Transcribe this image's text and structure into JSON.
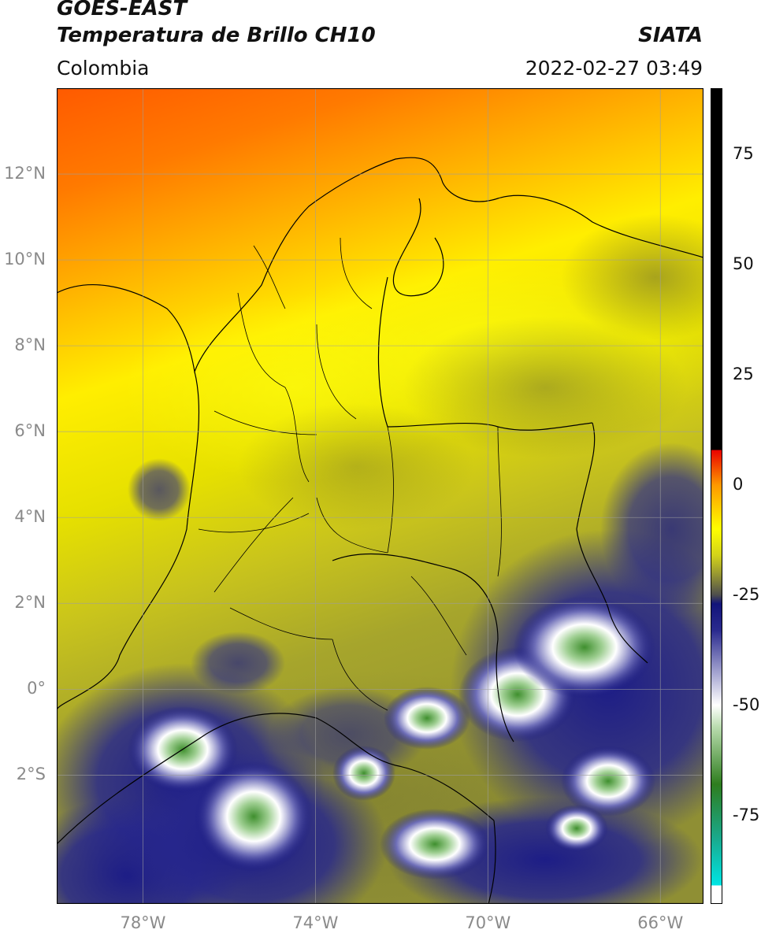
{
  "header": {
    "satellite": "GOES-EAST",
    "product": "Temperatura de Brillo CH10",
    "organization": "SIATA",
    "region": "Colombia",
    "datetime": "2022-02-27 03:49"
  },
  "map": {
    "lon_range": [
      -80,
      -65
    ],
    "lat_range": [
      -5,
      14
    ],
    "lat_ticks": [
      {
        "value": 12,
        "label": "12°N"
      },
      {
        "value": 10,
        "label": "10°N"
      },
      {
        "value": 8,
        "label": "8°N"
      },
      {
        "value": 6,
        "label": "6°N"
      },
      {
        "value": 4,
        "label": "4°N"
      },
      {
        "value": 2,
        "label": "2°N"
      },
      {
        "value": 0,
        "label": "0°"
      },
      {
        "value": -2,
        "label": "2°S"
      }
    ],
    "lon_ticks": [
      {
        "value": -78,
        "label": "78°W"
      },
      {
        "value": -74,
        "label": "74°W"
      },
      {
        "value": -70,
        "label": "70°W"
      },
      {
        "value": -66,
        "label": "66°W"
      }
    ]
  },
  "colorbar": {
    "range": [
      -95,
      90
    ],
    "ticks": [
      {
        "value": 75,
        "label": "75"
      },
      {
        "value": 50,
        "label": "50"
      },
      {
        "value": 25,
        "label": "25"
      },
      {
        "value": 0,
        "label": "0"
      },
      {
        "value": -25,
        "label": "-25"
      },
      {
        "value": -50,
        "label": "-50"
      },
      {
        "value": -75,
        "label": "-75"
      }
    ],
    "stops": [
      {
        "value": -95,
        "color": "#ffffff"
      },
      {
        "value": -91,
        "color": "#ffffff"
      },
      {
        "value": -91,
        "color": "#00e5e5"
      },
      {
        "value": -80,
        "color": "#1aa88a"
      },
      {
        "value": -68,
        "color": "#2e7d1e"
      },
      {
        "value": -55,
        "color": "#b9dcae"
      },
      {
        "value": -50,
        "color": "#ffffff"
      },
      {
        "value": -42,
        "color": "#9c9ccc"
      },
      {
        "value": -33,
        "color": "#2a2a8e"
      },
      {
        "value": -27,
        "color": "#12147a"
      },
      {
        "value": -25,
        "color": "#4d4d4d"
      },
      {
        "value": -20,
        "color": "#9b9b30"
      },
      {
        "value": -16,
        "color": "#d2d21a"
      },
      {
        "value": -10,
        "color": "#ffff00"
      },
      {
        "value": 0,
        "color": "#ff9800"
      },
      {
        "value": 8,
        "color": "#e80000"
      },
      {
        "value": 8,
        "color": "#000000"
      },
      {
        "value": 90,
        "color": "#000000"
      }
    ]
  }
}
